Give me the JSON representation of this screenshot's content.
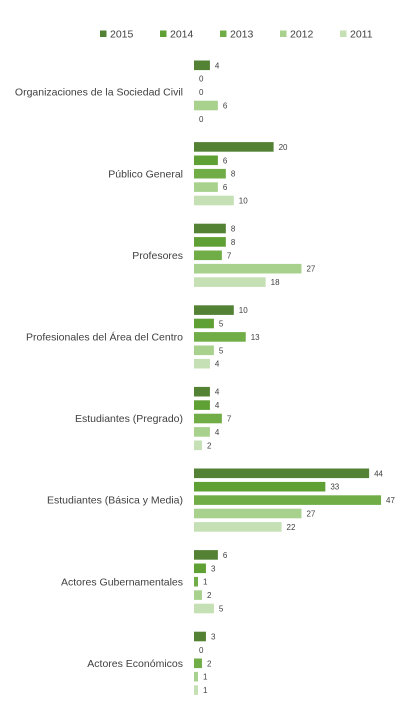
{
  "chart_data": {
    "type": "bar",
    "orientation": "horizontal",
    "legend_position": "top",
    "categories": [
      "Organizaciones de la Sociedad Civil",
      "Público General",
      "Profesores",
      "Profesionales del Área del Centro",
      "Estudiantes (Pregrado)",
      "Estudiantes (Básica y Media)",
      "Actores Gubernamentales",
      "Actores Económicos"
    ],
    "series": [
      {
        "name": "2015",
        "color": "#548235",
        "values": [
          4,
          20,
          8,
          10,
          4,
          44,
          6,
          3
        ]
      },
      {
        "name": "2014",
        "color": "#5fa034",
        "values": [
          0,
          6,
          8,
          5,
          4,
          33,
          3,
          0
        ]
      },
      {
        "name": "2013",
        "color": "#70ad47",
        "values": [
          0,
          8,
          7,
          13,
          7,
          47,
          1,
          2
        ]
      },
      {
        "name": "2012",
        "color": "#a9d18e",
        "values": [
          6,
          6,
          27,
          5,
          4,
          27,
          2,
          1
        ]
      },
      {
        "name": "2011",
        "color": "#c5e0b4",
        "values": [
          0,
          10,
          18,
          4,
          2,
          22,
          5,
          1
        ]
      }
    ],
    "grid": false,
    "show_data_labels": true
  }
}
